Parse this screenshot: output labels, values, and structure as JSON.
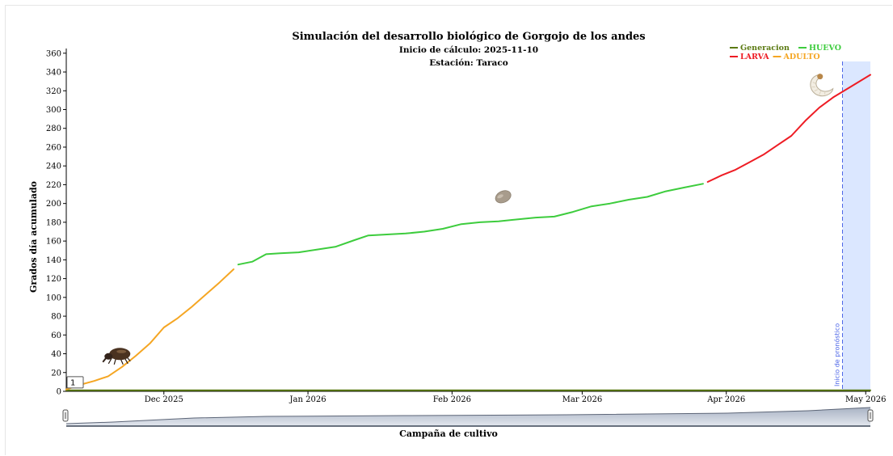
{
  "colors": {
    "generacion": "#5b7a12",
    "huevo": "#3dcc3d",
    "larva": "#ee1c24",
    "adulto": "#f5a623",
    "forecast_band": "#dbe7ff",
    "forecast_line": "#4d66e8"
  },
  "icons": {
    "adult_beetle": "weevil-beetle-icon",
    "egg": "egg-icon",
    "larva": "larva-grub-icon"
  },
  "chart_data": {
    "type": "line",
    "title": "Simulación del desarrollo biológico de Gorgojo de los andes",
    "subtitle_1": "Inicio de cálculo: 2025-11-10",
    "subtitle_2": "Estación: Taraco",
    "ylabel": "Grados día acumulado",
    "xlabel": "Campaña de cultivo",
    "ylim": [
      0,
      365
    ],
    "xlim": [
      "2025-11-10",
      "2026-05-02"
    ],
    "y_ticks": [
      0,
      20,
      40,
      60,
      80,
      100,
      120,
      140,
      160,
      180,
      200,
      220,
      240,
      260,
      280,
      300,
      320,
      340,
      360
    ],
    "x_ticks": [
      {
        "date": "2025-12-01",
        "label": "Dec 2025"
      },
      {
        "date": "2026-01-01",
        "label": "Jan 2026"
      },
      {
        "date": "2026-02-01",
        "label": "Feb 2026"
      },
      {
        "date": "2026-03-01",
        "label": "Mar 2026"
      },
      {
        "date": "2026-04-01",
        "label": "Apr 2026"
      },
      {
        "date": "2026-05-01",
        "label": "May 2026"
      }
    ],
    "legend": {
      "placement": "top-right",
      "items": [
        {
          "label": "Generacion",
          "series": "generacion"
        },
        {
          "label": "HUEVO",
          "series": "huevo"
        },
        {
          "label": "LARVA",
          "series": "larva"
        },
        {
          "label": "ADULTO",
          "series": "adulto"
        }
      ]
    },
    "forecast": {
      "start": "2026-04-26",
      "end": "2026-05-02",
      "label": "Inicio de pronóstico"
    },
    "point_label": "1",
    "series": [
      {
        "name": "Generacion",
        "key": "generacion",
        "points": [
          [
            "2025-11-10",
            1
          ],
          [
            "2026-05-02",
            1
          ]
        ]
      },
      {
        "name": "ADULTO",
        "key": "adulto",
        "points": [
          [
            "2025-11-10",
            2
          ],
          [
            "2025-11-13",
            7
          ],
          [
            "2025-11-16",
            11
          ],
          [
            "2025-11-19",
            16
          ],
          [
            "2025-11-22",
            26
          ],
          [
            "2025-11-25",
            38
          ],
          [
            "2025-11-28",
            51
          ],
          [
            "2025-12-01",
            68
          ],
          [
            "2025-12-04",
            78
          ],
          [
            "2025-12-07",
            90
          ],
          [
            "2025-12-10",
            103
          ],
          [
            "2025-12-13",
            116
          ],
          [
            "2025-12-16",
            130
          ]
        ]
      },
      {
        "name": "HUEVO",
        "key": "huevo",
        "points": [
          [
            "2025-12-17",
            135
          ],
          [
            "2025-12-20",
            138
          ],
          [
            "2025-12-23",
            146
          ],
          [
            "2025-12-26",
            147
          ],
          [
            "2025-12-30",
            148
          ],
          [
            "2026-01-03",
            151
          ],
          [
            "2026-01-07",
            154
          ],
          [
            "2026-01-11",
            161
          ],
          [
            "2026-01-14",
            166
          ],
          [
            "2026-01-18",
            167
          ],
          [
            "2026-01-22",
            168
          ],
          [
            "2026-01-26",
            170
          ],
          [
            "2026-01-30",
            173
          ],
          [
            "2026-02-03",
            178
          ],
          [
            "2026-02-07",
            180
          ],
          [
            "2026-02-11",
            181
          ],
          [
            "2026-02-15",
            183
          ],
          [
            "2026-02-19",
            185
          ],
          [
            "2026-02-23",
            186
          ],
          [
            "2026-02-27",
            191
          ],
          [
            "2026-03-03",
            197
          ],
          [
            "2026-03-07",
            200
          ],
          [
            "2026-03-11",
            204
          ],
          [
            "2026-03-15",
            207
          ],
          [
            "2026-03-19",
            213
          ],
          [
            "2026-03-23",
            217
          ],
          [
            "2026-03-27",
            221
          ]
        ]
      },
      {
        "name": "LARVA",
        "key": "larva",
        "points": [
          [
            "2026-03-28",
            223
          ],
          [
            "2026-03-31",
            230
          ],
          [
            "2026-04-03",
            236
          ],
          [
            "2026-04-06",
            244
          ],
          [
            "2026-04-09",
            252
          ],
          [
            "2026-04-12",
            262
          ],
          [
            "2026-04-15",
            272
          ],
          [
            "2026-04-18",
            288
          ],
          [
            "2026-04-21",
            302
          ],
          [
            "2026-04-24",
            313
          ],
          [
            "2026-04-27",
            322
          ],
          [
            "2026-04-30",
            331
          ],
          [
            "2026-05-02",
            337
          ]
        ]
      }
    ]
  }
}
